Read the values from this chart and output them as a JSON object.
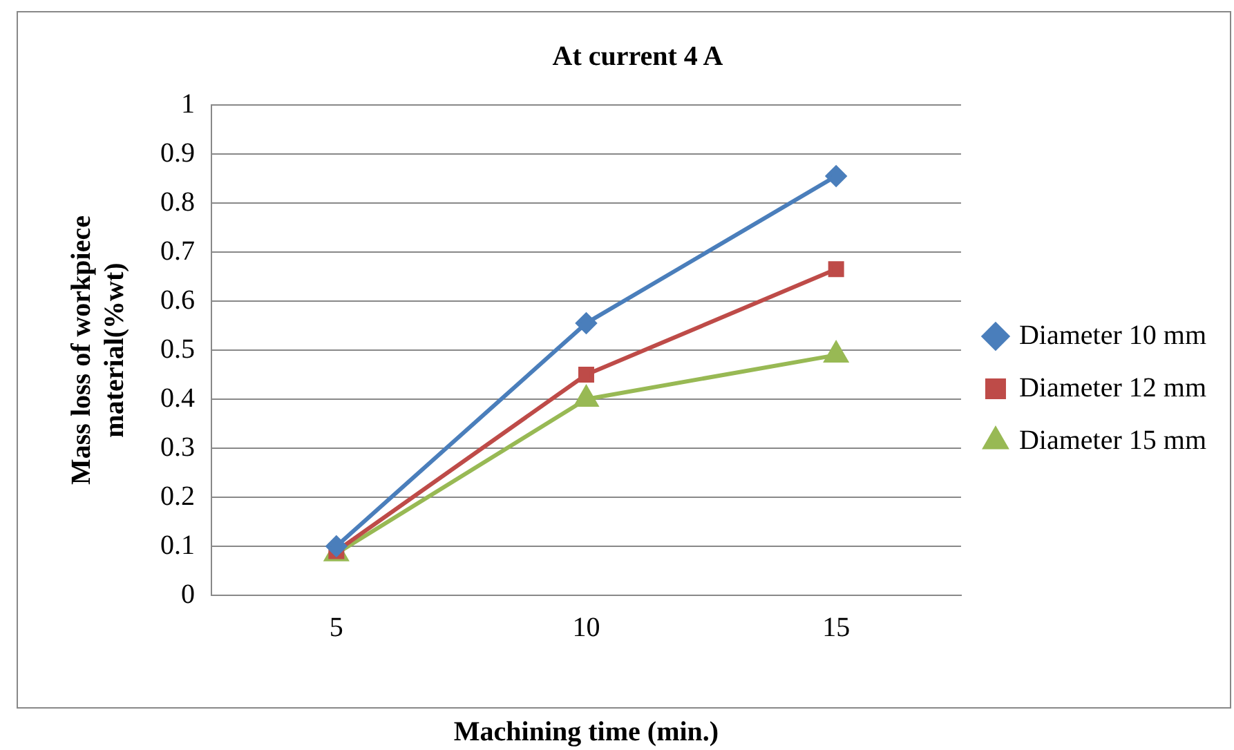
{
  "chart_data": {
    "type": "line",
    "title": "At current 4 A",
    "xlabel": "Machining time (min.)",
    "ylabel": "Mass loss of workpiece\nmaterial(%wt)",
    "categories": [
      "5",
      "10",
      "15"
    ],
    "series": [
      {
        "name": "Diameter 10 mm",
        "color": "#4a7ebb",
        "marker": "diamond",
        "values": [
          0.1,
          0.555,
          0.855
        ]
      },
      {
        "name": "Diameter 12 mm",
        "color": "#be4b48",
        "marker": "square",
        "values": [
          0.09,
          0.45,
          0.665
        ]
      },
      {
        "name": "Diameter 15 mm",
        "color": "#98b954",
        "marker": "triangle",
        "values": [
          0.085,
          0.4,
          0.49
        ]
      }
    ],
    "ylim": [
      0,
      1
    ],
    "yticks": [
      0,
      0.1,
      0.2,
      0.3,
      0.4,
      0.5,
      0.6,
      0.7,
      0.8,
      0.9,
      1
    ],
    "grid": "y",
    "legend": "right",
    "line_style": "solid"
  }
}
